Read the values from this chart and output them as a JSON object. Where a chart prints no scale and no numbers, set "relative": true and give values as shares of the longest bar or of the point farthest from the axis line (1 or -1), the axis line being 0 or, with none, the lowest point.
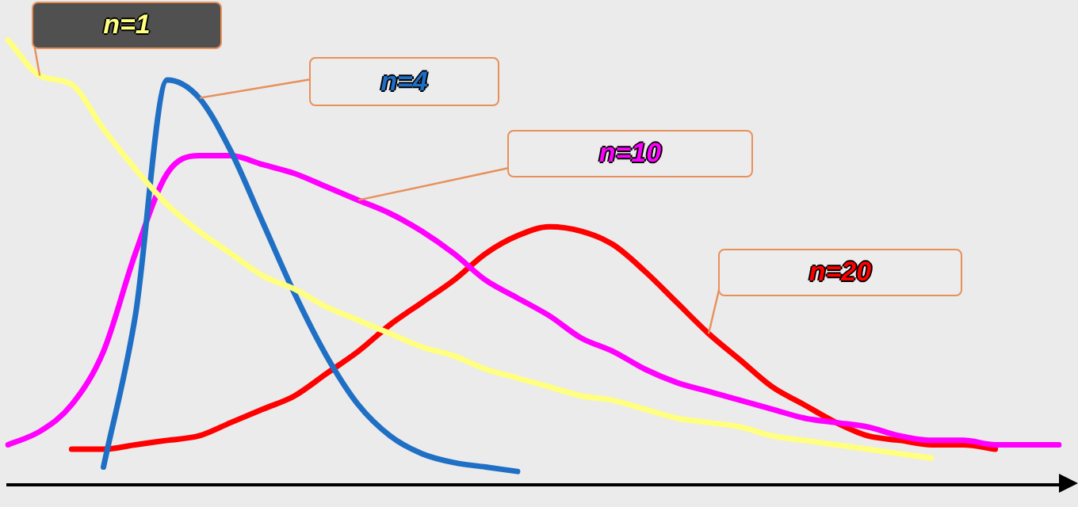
{
  "chart_data": {
    "type": "line",
    "relative": true,
    "tick_labels": false,
    "grid": false,
    "legend": false,
    "marker": "none",
    "line_style": "solid",
    "categories": [
      null,
      null,
      null,
      null,
      null,
      null,
      null,
      null,
      null,
      null,
      null,
      null,
      null,
      null,
      null,
      null,
      null,
      null,
      null,
      null,
      null,
      null,
      null,
      null,
      null,
      null,
      null,
      null,
      null,
      null,
      null,
      null,
      null,
      null
    ],
    "series": [
      {
        "name": "n=1",
        "color": "#ffff80",
        "values": [
          1.0,
          0.92,
          0.9,
          0.8,
          0.71,
          0.63,
          0.57,
          0.52,
          0.47,
          0.44,
          0.4,
          0.37,
          0.34,
          0.31,
          0.29,
          0.26,
          0.24,
          0.22,
          0.2,
          0.19,
          0.17,
          0.15,
          0.14,
          0.13,
          0.11,
          0.1,
          0.09,
          0.08,
          0.07,
          0.06,
          null,
          null,
          null,
          null
        ]
      },
      {
        "name": "n=4",
        "color": "#1f6fc5",
        "values": [
          null,
          null,
          null,
          0.04,
          0.38,
          0.91,
          0.87,
          0.75,
          0.59,
          0.43,
          0.29,
          0.18,
          0.11,
          0.07,
          0.05,
          0.04,
          0.03,
          null,
          null,
          null,
          null,
          null,
          null,
          null,
          null,
          null,
          null,
          null,
          null,
          null,
          null,
          null,
          null,
          null
        ]
      },
      {
        "name": "n=10",
        "color": "#ff00ff",
        "values": [
          0.09,
          0.12,
          0.18,
          0.3,
          0.52,
          0.7,
          0.74,
          0.74,
          0.72,
          0.7,
          0.67,
          0.64,
          0.61,
          0.57,
          0.52,
          0.46,
          0.42,
          0.38,
          0.33,
          0.3,
          0.26,
          0.23,
          0.21,
          0.19,
          0.17,
          0.15,
          0.14,
          0.13,
          0.11,
          0.1,
          0.1,
          0.09,
          0.09,
          0.09
        ]
      },
      {
        "name": "n=20",
        "color": "#ff0000",
        "values": [
          null,
          null,
          0.08,
          0.08,
          0.09,
          0.1,
          0.11,
          0.14,
          0.17,
          0.2,
          0.25,
          0.3,
          0.36,
          0.41,
          0.46,
          0.52,
          0.56,
          0.58,
          0.57,
          0.54,
          0.48,
          0.41,
          0.34,
          0.28,
          0.22,
          0.18,
          0.14,
          0.11,
          0.1,
          0.09,
          0.09,
          0.08,
          null,
          null
        ]
      }
    ]
  }
}
